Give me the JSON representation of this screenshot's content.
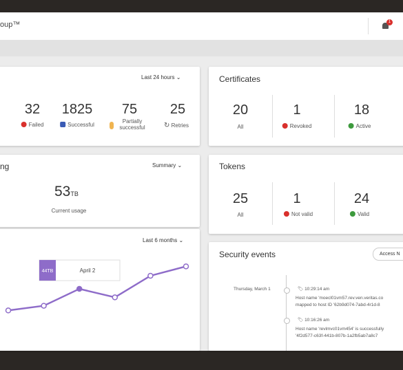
{
  "header": {
    "title": "oup™",
    "notification_count": "1"
  },
  "jobs": {
    "range": "Last 24 hours",
    "stats": [
      {
        "value": "32",
        "label": "Failed"
      },
      {
        "value": "1825",
        "label": "Successful"
      },
      {
        "value": "75",
        "label": "Partially successful"
      },
      {
        "value": "25",
        "label": "Retries"
      }
    ]
  },
  "storage": {
    "title": "ng",
    "range": "Summary",
    "usage": "53",
    "unit": "TB",
    "usage_label": "Current usage"
  },
  "usage_chart": {
    "type": "line",
    "range": "Last 6 months",
    "values": [
      21,
      26,
      44,
      35,
      58,
      68
    ],
    "ylim": [
      0,
      80
    ],
    "color": "#8e6cc9",
    "tooltip": {
      "label": "44TB",
      "date": "April 2"
    }
  },
  "certificates": {
    "title": "Certificates",
    "stats": [
      {
        "value": "20",
        "label": "All"
      },
      {
        "value": "1",
        "label": "Revoked"
      },
      {
        "value": "18",
        "label": "Active"
      }
    ]
  },
  "tokens": {
    "title": "Tokens",
    "stats": [
      {
        "value": "25",
        "label": "All"
      },
      {
        "value": "1",
        "label": "Not valid"
      },
      {
        "value": "24",
        "label": "Valid"
      }
    ]
  },
  "security_events": {
    "title": "Security events",
    "button": "Access N",
    "date": "Thursday, March 1",
    "events": [
      {
        "time": "10:29:14 am",
        "lines": [
          "Host name 'moecl01vm57.rev.ven.veritas.co",
          "mapped to host ID '62b9d074-7abd-4r1d-8"
        ]
      },
      {
        "time": "10:16:26 am",
        "lines": [
          "Host name 'revlmvc01vm454' is successfully",
          "'4f2d577-c63f-441b-807b-1a2fb5ab7a8c7"
        ]
      }
    ]
  }
}
